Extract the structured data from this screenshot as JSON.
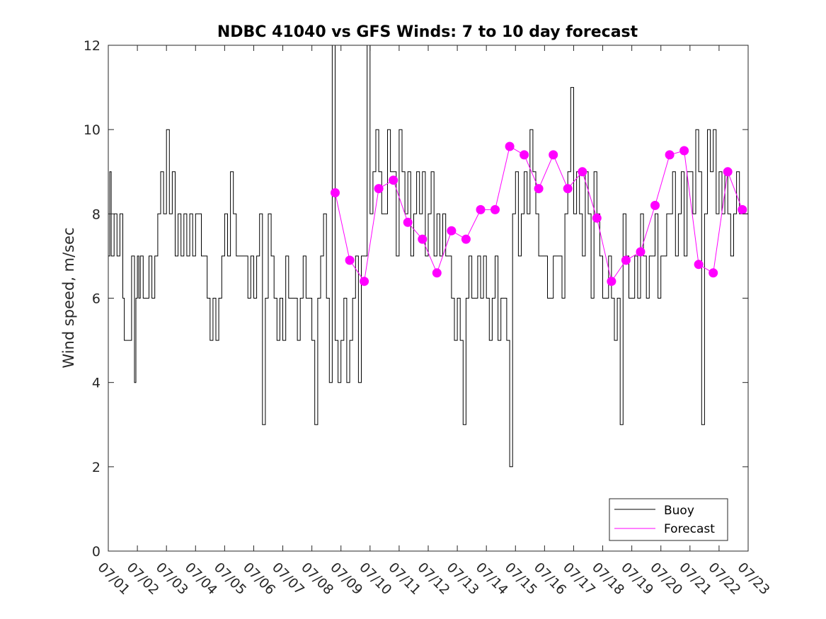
{
  "chart_data": {
    "type": "line",
    "title": "NDBC 41040 vs GFS Winds: 7 to 10 day forecast",
    "xlabel": "",
    "ylabel": "Wind speed, m/sec",
    "ylim": [
      0,
      12
    ],
    "yticks": [
      0,
      2,
      4,
      6,
      8,
      10,
      12
    ],
    "xlim": [
      0,
      22
    ],
    "xtick_labels": [
      "07/01",
      "07/02",
      "07/03",
      "07/04",
      "07/05",
      "07/06",
      "07/07",
      "07/08",
      "07/09",
      "07/10",
      "07/11",
      "07/12",
      "07/13",
      "07/14",
      "07/15",
      "07/16",
      "07/17",
      "07/18",
      "07/19",
      "07/20",
      "07/21",
      "07/22",
      "07/23"
    ],
    "grid": false,
    "legend_position": "bottom-right",
    "colors": {
      "buoy": "#000000",
      "forecast": "#ff00ff"
    },
    "series": [
      {
        "name": "Buoy",
        "x": [
          0,
          0.05,
          0.1,
          0.2,
          0.3,
          0.4,
          0.5,
          0.55,
          0.6,
          0.7,
          0.8,
          0.9,
          0.95,
          1.0,
          1.05,
          1.1,
          1.2,
          1.3,
          1.4,
          1.5,
          1.6,
          1.7,
          1.8,
          1.9,
          2.0,
          2.1,
          2.2,
          2.3,
          2.4,
          2.5,
          2.6,
          2.7,
          2.8,
          2.9,
          3.0,
          3.1,
          3.2,
          3.3,
          3.4,
          3.5,
          3.6,
          3.7,
          3.8,
          3.9,
          4.0,
          4.1,
          4.2,
          4.3,
          4.4,
          4.5,
          4.6,
          4.7,
          4.8,
          4.9,
          5.0,
          5.1,
          5.2,
          5.3,
          5.4,
          5.5,
          5.6,
          5.7,
          5.8,
          5.9,
          6.0,
          6.1,
          6.2,
          6.3,
          6.4,
          6.5,
          6.6,
          6.7,
          6.8,
          6.9,
          7.0,
          7.1,
          7.2,
          7.3,
          7.4,
          7.5,
          7.6,
          7.7,
          7.8,
          7.9,
          8.0,
          8.1,
          8.2,
          8.3,
          8.4,
          8.5,
          8.6,
          8.7,
          8.8,
          8.9,
          9.0,
          9.1,
          9.2,
          9.3,
          9.4,
          9.5,
          9.6,
          9.7,
          9.8,
          9.9,
          10.0,
          10.1,
          10.2,
          10.3,
          10.4,
          10.5,
          10.6,
          10.7,
          10.8,
          10.9,
          11.0,
          11.1,
          11.2,
          11.3,
          11.4,
          11.5,
          11.6,
          11.7,
          11.8,
          11.9,
          12.0,
          12.1,
          12.2,
          12.3,
          12.4,
          12.5,
          12.6,
          12.7,
          12.8,
          12.9,
          13.0,
          13.1,
          13.2,
          13.3,
          13.4,
          13.5,
          13.6,
          13.7,
          13.8,
          13.9,
          14.0,
          14.1,
          14.2,
          14.3,
          14.4,
          14.5,
          14.6,
          14.7,
          14.8,
          14.9,
          15.0,
          15.1,
          15.2,
          15.3,
          15.4,
          15.5,
          15.6,
          15.7,
          15.8,
          15.9,
          16.0,
          16.1,
          16.2,
          16.3,
          16.4,
          16.5,
          16.6,
          16.7,
          16.8,
          16.9,
          17.0,
          17.1,
          17.2,
          17.3,
          17.4,
          17.5,
          17.6,
          17.7,
          17.8,
          17.9,
          18.0,
          18.1,
          18.2,
          18.3,
          18.4,
          18.5,
          18.6,
          18.7,
          18.8,
          18.9,
          19.0,
          19.1,
          19.2,
          19.3,
          19.4,
          19.5,
          19.6,
          19.7,
          19.8,
          19.9,
          20.0,
          20.1,
          20.2,
          20.3,
          20.4,
          20.5,
          20.6,
          20.7,
          20.8,
          20.9,
          21.0,
          21.1,
          21.2,
          21.3,
          21.4,
          21.5,
          21.6,
          21.7,
          21.8,
          21.9,
          22.0
        ],
        "values": [
          7,
          9,
          7,
          8,
          7,
          8,
          6,
          5,
          5,
          5,
          7,
          4,
          6,
          7,
          6,
          7,
          6,
          6,
          7,
          6,
          7,
          8,
          9,
          8,
          10,
          8,
          9,
          7,
          8,
          7,
          8,
          7,
          8,
          7,
          8,
          8,
          7,
          7,
          6,
          5,
          6,
          5,
          6,
          7,
          8,
          7,
          9,
          8,
          7,
          7,
          7,
          7,
          6,
          7,
          6,
          7,
          8,
          3,
          6,
          8,
          7,
          6,
          5,
          6,
          5,
          7,
          6,
          6,
          6,
          5,
          6,
          7,
          6,
          6,
          5,
          3,
          6,
          7,
          8,
          6,
          4,
          12,
          5,
          4,
          5,
          6,
          4,
          5,
          6,
          7,
          4,
          7,
          7,
          12,
          8,
          9,
          10,
          9,
          8,
          8,
          10,
          9,
          9,
          7,
          10,
          9,
          8,
          9,
          7,
          8,
          9,
          8,
          9,
          7,
          8,
          9,
          7,
          8,
          7,
          8,
          7,
          7,
          6,
          5,
          6,
          5,
          3,
          6,
          7,
          6,
          6,
          7,
          6,
          7,
          6,
          5,
          6,
          7,
          5,
          6,
          6,
          5,
          2,
          8,
          9,
          7,
          8,
          9,
          8,
          10,
          9,
          8,
          7,
          7,
          7,
          6,
          6,
          7,
          7,
          7,
          6,
          8,
          9,
          11,
          8,
          9,
          8,
          7,
          9,
          8,
          6,
          9,
          8,
          7,
          6,
          6,
          7,
          6,
          5,
          6,
          3,
          8,
          7,
          6,
          6,
          7,
          6,
          8,
          7,
          6,
          7,
          7,
          8,
          6,
          7,
          7,
          8,
          8,
          9,
          7,
          8,
          9,
          7,
          9,
          9,
          8,
          10,
          9,
          3,
          8,
          10,
          9,
          10,
          8,
          9,
          8,
          9,
          8,
          7,
          8,
          9,
          8,
          8,
          8,
          8
        ]
      },
      {
        "name": "Forecast",
        "x": [
          7.8,
          8.3,
          8.8,
          9.3,
          9.8,
          10.3,
          10.8,
          11.3,
          11.8,
          12.3,
          12.8,
          13.3,
          13.8,
          14.3,
          14.8,
          15.3,
          15.8,
          16.3,
          16.8,
          17.3,
          17.8,
          18.3,
          18.8,
          19.3,
          19.8,
          20.3,
          20.8,
          21.3,
          21.8
        ],
        "values": [
          8.5,
          6.9,
          6.4,
          8.6,
          8.8,
          7.8,
          7.4,
          6.6,
          7.6,
          7.4,
          8.1,
          8.1,
          9.6,
          9.4,
          8.6,
          9.4,
          8.6,
          9.0,
          7.9,
          6.4,
          6.9,
          7.1,
          8.2,
          9.4,
          9.5,
          6.8,
          6.6,
          9.0,
          8.1
        ],
        "markers": [
          {
            "x": 7.8,
            "y": 8.5
          },
          {
            "x": 8.3,
            "y": 6.9
          },
          {
            "x": 8.8,
            "y": 6.4
          },
          {
            "x": 9.3,
            "y": 8.6
          },
          {
            "x": 9.8,
            "y": 8.8
          },
          {
            "x": 10.3,
            "y": 7.8
          },
          {
            "x": 10.8,
            "y": 7.4
          },
          {
            "x": 11.3,
            "y": 6.6
          },
          {
            "x": 11.8,
            "y": 7.6
          },
          {
            "x": 12.3,
            "y": 7.4
          },
          {
            "x": 12.8,
            "y": 8.1
          },
          {
            "x": 13.3,
            "y": 8.1
          },
          {
            "x": 13.8,
            "y": 9.6
          },
          {
            "x": 14.3,
            "y": 9.4
          },
          {
            "x": 14.8,
            "y": 8.6
          },
          {
            "x": 15.3,
            "y": 9.4
          },
          {
            "x": 15.8,
            "y": 8.6
          },
          {
            "x": 16.3,
            "y": 9.0
          },
          {
            "x": 16.8,
            "y": 7.9
          },
          {
            "x": 17.3,
            "y": 6.4
          },
          {
            "x": 17.8,
            "y": 6.9
          },
          {
            "x": 18.3,
            "y": 7.1
          },
          {
            "x": 18.8,
            "y": 8.2
          },
          {
            "x": 19.3,
            "y": 9.4
          },
          {
            "x": 19.8,
            "y": 9.5
          },
          {
            "x": 20.3,
            "y": 6.8
          },
          {
            "x": 20.8,
            "y": 6.6
          },
          {
            "x": 21.3,
            "y": 9.0
          },
          {
            "x": 21.8,
            "y": 8.1
          }
        ]
      }
    ]
  }
}
